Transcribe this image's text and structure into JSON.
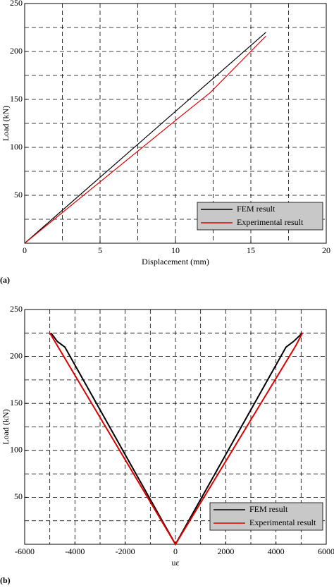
{
  "chart_data": [
    {
      "type": "line",
      "panel_label": "(a)",
      "xlabel": "Displacement (mm)",
      "ylabel": "Load (kN)",
      "xlim": [
        0,
        20
      ],
      "ylim": [
        0,
        250
      ],
      "xticks": [
        0,
        5,
        10,
        15,
        20
      ],
      "yticks": [
        50,
        100,
        150,
        200,
        250
      ],
      "xgrid": [
        2.5,
        5,
        7.5,
        10,
        12.5,
        15,
        17.5
      ],
      "ygrid": [
        25,
        50,
        75,
        100,
        125,
        150,
        175,
        200,
        225
      ],
      "legend": "lower right",
      "series": [
        {
          "name": "FEM result",
          "color": "#000000",
          "x": [
            0,
            16
          ],
          "values": [
            0,
            220
          ]
        },
        {
          "name": "Experimental result",
          "color": "#e00000",
          "x": [
            0,
            2.5,
            10,
            12.3,
            16
          ],
          "values": [
            0,
            32,
            128,
            157,
            216
          ]
        }
      ]
    },
    {
      "type": "line",
      "panel_label": "(b)",
      "xlabel": "uε",
      "ylabel": "Load (kN)",
      "xlim": [
        -6000,
        6000
      ],
      "ylim": [
        0,
        250
      ],
      "xticks": [
        -6000,
        -4000,
        -2000,
        0,
        2000,
        4000,
        6000
      ],
      "yticks": [
        50,
        100,
        150,
        200,
        250
      ],
      "xgrid": [
        -5000,
        -4000,
        -3000,
        -2000,
        -1000,
        0,
        1000,
        2000,
        3000,
        4000,
        5000
      ],
      "ygrid": [
        25,
        50,
        75,
        100,
        125,
        150,
        175,
        200,
        225
      ],
      "legend": "lower right",
      "series": [
        {
          "name": "FEM result",
          "color": "#000000",
          "x": [
            -4950,
            -4700,
            -4400,
            0,
            4400,
            4700,
            5050
          ],
          "values": [
            225,
            216,
            210,
            0,
            210,
            216,
            225
          ]
        },
        {
          "name": "Experimental result",
          "color": "#e00000",
          "x": [
            -5000,
            0,
            4800,
            5050
          ],
          "values": [
            225,
            0,
            212,
            225
          ]
        }
      ]
    }
  ]
}
